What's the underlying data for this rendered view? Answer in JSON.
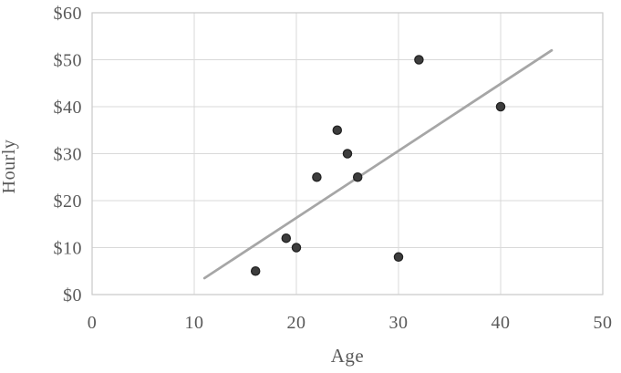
{
  "chart_data": {
    "type": "scatter",
    "title": "",
    "xlabel": "Age",
    "ylabel": "Hourly",
    "xlim": [
      0,
      50
    ],
    "ylim": [
      0,
      60
    ],
    "grid": true,
    "legend": "none",
    "x_ticks": [
      0,
      10,
      20,
      30,
      40,
      50
    ],
    "y_tick_values": [
      0,
      10,
      20,
      30,
      40,
      50,
      60
    ],
    "y_tick_labels": [
      "$0",
      "$10",
      "$20",
      "$30",
      "$40",
      "$50",
      "$60"
    ],
    "points": [
      {
        "x": 16,
        "y": 5
      },
      {
        "x": 19,
        "y": 12
      },
      {
        "x": 20,
        "y": 10
      },
      {
        "x": 22,
        "y": 25
      },
      {
        "x": 24,
        "y": 35
      },
      {
        "x": 25,
        "y": 30
      },
      {
        "x": 26,
        "y": 25
      },
      {
        "x": 30,
        "y": 8
      },
      {
        "x": 32,
        "y": 50
      },
      {
        "x": 40,
        "y": 40
      }
    ],
    "trendline": {
      "x1": 11,
      "y1": 3.5,
      "x2": 45,
      "y2": 52
    },
    "colors": {
      "marker_fill": "#3d3d3d",
      "marker_stroke": "#222222",
      "trendline": "#a6a6a6",
      "gridline": "#d9d9d9",
      "plot_border": "#c9c9c9",
      "text": "#595959"
    }
  }
}
